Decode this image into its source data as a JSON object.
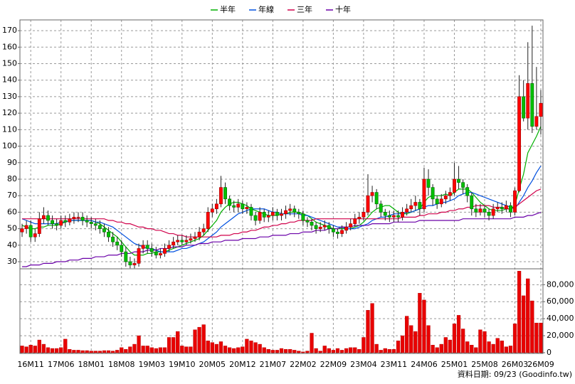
{
  "chart_data": [
    {
      "type": "candlestick",
      "legend_position": "top",
      "grid": true,
      "up_color": "#ff0000",
      "down_color": "#00c000",
      "ylim": [
        25.7,
        176.5
      ],
      "yticks": [
        30,
        40,
        50,
        60,
        70,
        80,
        90,
        100,
        110,
        120,
        130,
        140,
        150,
        160,
        170
      ],
      "annotation": "資料日期: 09/23  (Goodinfo.tw)",
      "categories": [
        null,
        null,
        "16M11",
        null,
        null,
        null,
        null,
        null,
        null,
        "17M06",
        null,
        null,
        null,
        null,
        null,
        null,
        "18M01",
        null,
        null,
        null,
        null,
        null,
        null,
        "18M08",
        null,
        null,
        null,
        null,
        null,
        null,
        "19M03",
        null,
        null,
        null,
        null,
        null,
        null,
        "19M10",
        null,
        null,
        null,
        null,
        null,
        null,
        "20M05",
        null,
        null,
        null,
        null,
        null,
        null,
        "20M12",
        null,
        null,
        null,
        null,
        null,
        null,
        "21M07",
        null,
        null,
        null,
        null,
        null,
        null,
        "22M02",
        null,
        null,
        null,
        null,
        null,
        null,
        "22M09",
        null,
        null,
        null,
        null,
        null,
        null,
        "23M04",
        null,
        null,
        null,
        null,
        null,
        null,
        "23M11",
        null,
        null,
        null,
        null,
        null,
        null,
        "24M06",
        null,
        null,
        null,
        null,
        null,
        null,
        "25M01",
        null,
        null,
        null,
        null,
        null,
        null,
        "25M08",
        null,
        null,
        null,
        null,
        null,
        null,
        "26M03",
        null,
        null,
        null,
        null,
        null,
        "26M09"
      ],
      "open": [
        48,
        50,
        52,
        45,
        47,
        56,
        58,
        55,
        53,
        52,
        55,
        54,
        56,
        57,
        57,
        55,
        54,
        53,
        52,
        50,
        48,
        45,
        42,
        40,
        36,
        30,
        28,
        29,
        38,
        40,
        38,
        36,
        34,
        35,
        38,
        40,
        42,
        43,
        42,
        43,
        44,
        45,
        48,
        50,
        60,
        62,
        65,
        75,
        68,
        64,
        63,
        65,
        62,
        63,
        58,
        55,
        60,
        57,
        58,
        60,
        58,
        59,
        61,
        62,
        60,
        59,
        55,
        54,
        52,
        50,
        51,
        52,
        50,
        48,
        47,
        49,
        51,
        53,
        56,
        57,
        60,
        70,
        72,
        65,
        60,
        58,
        57,
        58,
        57,
        60,
        62,
        64,
        66,
        62,
        80,
        75,
        68,
        65,
        68,
        70,
        72,
        80,
        78,
        75,
        70,
        62,
        60,
        62,
        60,
        58,
        62,
        63,
        62,
        64,
        60,
        73,
        130,
        117,
        138,
        112,
        118
      ],
      "high": [
        53,
        55,
        55,
        50,
        60,
        63,
        61,
        58,
        56,
        58,
        58,
        59,
        60,
        60,
        60,
        58,
        57,
        56,
        55,
        53,
        51,
        48,
        45,
        43,
        39,
        33,
        32,
        41,
        43,
        43,
        41,
        39,
        38,
        41,
        43,
        45,
        46,
        46,
        46,
        47,
        48,
        51,
        53,
        63,
        65,
        68,
        82,
        78,
        70,
        67,
        68,
        67,
        66,
        65,
        60,
        63,
        62,
        61,
        63,
        62,
        62,
        64,
        65,
        64,
        62,
        61,
        57,
        56,
        54,
        54,
        55,
        54,
        52,
        50,
        52,
        54,
        56,
        59,
        60,
        63,
        83,
        76,
        74,
        67,
        62,
        61,
        61,
        61,
        63,
        65,
        68,
        70,
        68,
        87,
        86,
        77,
        70,
        71,
        73,
        75,
        90,
        88,
        80,
        77,
        72,
        65,
        65,
        64,
        62,
        65,
        66,
        66,
        67,
        66,
        75,
        143,
        140,
        163,
        173,
        148,
        134
      ],
      "low": [
        45,
        47,
        42,
        42,
        45,
        53,
        52,
        50,
        49,
        50,
        51,
        52,
        53,
        54,
        52,
        51,
        50,
        49,
        47,
        45,
        42,
        39,
        37,
        33,
        27,
        26,
        26,
        27,
        35,
        35,
        33,
        32,
        32,
        33,
        36,
        38,
        40,
        40,
        40,
        41,
        42,
        43,
        46,
        48,
        57,
        59,
        63,
        65,
        61,
        60,
        60,
        59,
        59,
        55,
        52,
        53,
        54,
        54,
        55,
        55,
        55,
        56,
        58,
        57,
        56,
        52,
        51,
        49,
        47,
        48,
        49,
        47,
        45,
        44,
        45,
        47,
        49,
        51,
        53,
        55,
        58,
        66,
        62,
        57,
        55,
        54,
        54,
        54,
        55,
        58,
        60,
        61,
        58,
        60,
        70,
        64,
        62,
        63,
        65,
        67,
        70,
        74,
        71,
        66,
        58,
        57,
        58,
        57,
        55,
        56,
        60,
        59,
        60,
        57,
        58,
        72,
        115,
        110,
        108,
        110,
        107
      ],
      "close": [
        50,
        52,
        45,
        47,
        56,
        58,
        55,
        53,
        52,
        55,
        54,
        56,
        57,
        57,
        55,
        54,
        53,
        52,
        50,
        48,
        45,
        42,
        40,
        36,
        30,
        28,
        29,
        38,
        40,
        38,
        36,
        34,
        35,
        38,
        40,
        42,
        43,
        42,
        43,
        44,
        45,
        48,
        50,
        60,
        62,
        65,
        75,
        68,
        64,
        63,
        65,
        62,
        63,
        58,
        55,
        60,
        57,
        58,
        60,
        58,
        59,
        61,
        62,
        60,
        59,
        55,
        54,
        52,
        50,
        51,
        52,
        50,
        48,
        47,
        49,
        51,
        53,
        56,
        57,
        60,
        70,
        72,
        65,
        60,
        58,
        57,
        58,
        57,
        60,
        62,
        64,
        66,
        62,
        80,
        75,
        68,
        65,
        68,
        70,
        72,
        80,
        78,
        75,
        70,
        62,
        60,
        62,
        60,
        58,
        62,
        63,
        62,
        64,
        60,
        73,
        130,
        117,
        138,
        112,
        118,
        126
      ],
      "series": [
        {
          "name": "半年",
          "color": "#00b000",
          "values": [
            52,
            51,
            50,
            50,
            51,
            51,
            52,
            52,
            52,
            53,
            54,
            55,
            55,
            55,
            55,
            55,
            55,
            54,
            53,
            51,
            49,
            47,
            45,
            42,
            39,
            36,
            34,
            34,
            34,
            35,
            35,
            36,
            36,
            36,
            37,
            38,
            39,
            40,
            41,
            42,
            43,
            44,
            46,
            49,
            52,
            55,
            60,
            63,
            65,
            66,
            66,
            65,
            64,
            62,
            61,
            60,
            59,
            58,
            58,
            58,
            59,
            59,
            60,
            60,
            60,
            59,
            58,
            56,
            54,
            53,
            52,
            51,
            50,
            50,
            50,
            50,
            50,
            51,
            52,
            54,
            57,
            60,
            62,
            63,
            64,
            64,
            62,
            60,
            59,
            59,
            60,
            61,
            62,
            66,
            69,
            70,
            70,
            70,
            71,
            70,
            72,
            74,
            74,
            74,
            72,
            69,
            66,
            64,
            62,
            61,
            61,
            61,
            62,
            62,
            64,
            74,
            83,
            96,
            101,
            106,
            112
          ]
        },
        {
          "name": "年線",
          "color": "#0050e0",
          "values": [
            56,
            55,
            54,
            53,
            53,
            53,
            53,
            53,
            53,
            54,
            54,
            55,
            55,
            55,
            55,
            55,
            55,
            54,
            54,
            53,
            52,
            51,
            49,
            47,
            45,
            43,
            41,
            40,
            39,
            38,
            38,
            37,
            36,
            36,
            36,
            36,
            37,
            38,
            38,
            39,
            40,
            41,
            42,
            44,
            46,
            48,
            51,
            53,
            55,
            57,
            59,
            60,
            61,
            62,
            62,
            62,
            62,
            61,
            60,
            60,
            59,
            59,
            59,
            59,
            59,
            58,
            58,
            57,
            56,
            55,
            54,
            53,
            52,
            51,
            51,
            50,
            50,
            50,
            51,
            52,
            53,
            55,
            56,
            57,
            57,
            58,
            59,
            59,
            59,
            60,
            60,
            61,
            62,
            63,
            64,
            64,
            65,
            66,
            66,
            67,
            68,
            70,
            71,
            72,
            72,
            71,
            70,
            69,
            68,
            67,
            66,
            65,
            64,
            63,
            62,
            66,
            70,
            75,
            79,
            84,
            88
          ]
        },
        {
          "name": "三年",
          "color": "#d0004a",
          "values": [
            56,
            56,
            56,
            56,
            56,
            56,
            56,
            56,
            56,
            56,
            56,
            56,
            56,
            56,
            56,
            56,
            56,
            56,
            56,
            56,
            55,
            55,
            54,
            54,
            53,
            53,
            52,
            51,
            51,
            50,
            50,
            49,
            49,
            48,
            47,
            47,
            46,
            46,
            45,
            45,
            45,
            45,
            45,
            45,
            45,
            45,
            46,
            46,
            46,
            47,
            47,
            48,
            48,
            49,
            49,
            50,
            51,
            51,
            52,
            52,
            53,
            53,
            54,
            54,
            55,
            55,
            55,
            55,
            56,
            56,
            56,
            56,
            56,
            56,
            56,
            56,
            56,
            56,
            56,
            56,
            56,
            56,
            56,
            56,
            56,
            56,
            56,
            56,
            57,
            57,
            57,
            57,
            58,
            58,
            59,
            59,
            59,
            60,
            60,
            61,
            61,
            62,
            62,
            63,
            63,
            64,
            64,
            64,
            64,
            63,
            63,
            63,
            62,
            62,
            63,
            65,
            67,
            69,
            71,
            73,
            74
          ]
        },
        {
          "name": "十年",
          "color": "#6a00a8",
          "values": [
            27,
            27,
            28,
            28,
            28,
            29,
            29,
            29,
            30,
            30,
            30,
            31,
            31,
            31,
            32,
            32,
            32,
            33,
            33,
            33,
            34,
            34,
            34,
            35,
            35,
            35,
            36,
            36,
            36,
            37,
            37,
            37,
            38,
            38,
            38,
            39,
            39,
            39,
            40,
            40,
            40,
            41,
            41,
            41,
            42,
            42,
            42,
            43,
            43,
            43,
            43,
            44,
            44,
            44,
            44,
            45,
            45,
            45,
            46,
            46,
            46,
            46,
            47,
            47,
            47,
            48,
            48,
            48,
            49,
            49,
            49,
            50,
            50,
            50,
            51,
            51,
            51,
            52,
            52,
            52,
            52,
            53,
            53,
            53,
            53,
            53,
            54,
            54,
            54,
            54,
            54,
            54,
            55,
            55,
            55,
            55,
            55,
            55,
            55,
            55,
            55,
            55,
            56,
            56,
            56,
            56,
            56,
            56,
            56,
            56,
            56,
            56,
            56,
            56,
            57,
            57,
            57,
            58,
            58,
            59,
            60
          ]
        }
      ]
    },
    {
      "type": "bar",
      "grid": true,
      "y_axis_side": "right",
      "color": "#e80000",
      "ylim": [
        0,
        97000
      ],
      "yticks": [
        0,
        {
          "value": 20000,
          "label": "20,000"
        },
        {
          "value": 40000,
          "label": "40,000"
        },
        {
          "value": 60000,
          "label": "60,000"
        },
        {
          "value": 80000,
          "label": "80,000"
        }
      ],
      "values": [
        8000,
        7000,
        9000,
        8000,
        15000,
        10000,
        6000,
        5000,
        5000,
        6000,
        16000,
        4000,
        3000,
        3000,
        2500,
        2500,
        2000,
        2000,
        2000,
        2500,
        2500,
        2000,
        3000,
        6000,
        4000,
        7000,
        10000,
        20000,
        8000,
        8000,
        6000,
        5000,
        6000,
        6000,
        18000,
        18000,
        25000,
        8000,
        7000,
        7000,
        27000,
        30000,
        33000,
        14000,
        12000,
        10000,
        13000,
        8000,
        6000,
        5000,
        6000,
        7000,
        16000,
        14000,
        12000,
        10000,
        6000,
        4000,
        3000,
        3000,
        5000,
        4000,
        4000,
        3000,
        2000,
        1000,
        2000,
        23000,
        5000,
        2000,
        8000,
        5000,
        3000,
        5000,
        3000,
        5000,
        6000,
        6000,
        4000,
        18000,
        50000,
        58000,
        10000,
        3000,
        5000,
        4000,
        4000,
        14000,
        20000,
        43000,
        32000,
        25000,
        70000,
        62000,
        32000,
        9000,
        6000,
        10000,
        18000,
        15000,
        34000,
        44000,
        28000,
        13000,
        9000,
        6000,
        27000,
        25000,
        13000,
        10000,
        17000,
        14000,
        7000,
        8000,
        34000,
        96000,
        67000,
        87000,
        61000,
        35000,
        35000
      ]
    }
  ]
}
